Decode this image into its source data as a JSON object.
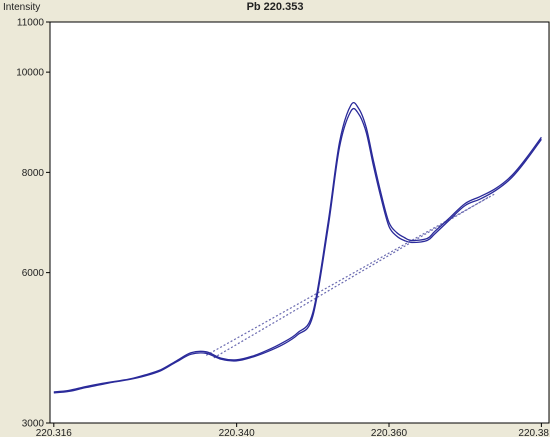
{
  "chart_data": {
    "type": "line",
    "title": "Pb 220.353",
    "ylabel": "Intensity",
    "xlabel": "",
    "xlim": [
      220.3155,
      220.381
    ],
    "ylim": [
      3000,
      11000
    ],
    "y_ticks": [
      {
        "value": 3000,
        "label": "3000"
      },
      {
        "value": 6000,
        "label": "6000"
      },
      {
        "value": 8000,
        "label": "8000"
      },
      {
        "value": 10000,
        "label": "10000"
      },
      {
        "value": 11000,
        "label": "11000"
      }
    ],
    "x_ticks": [
      {
        "value": 220.316,
        "label": "220.316"
      },
      {
        "value": 220.34,
        "label": "220.340"
      },
      {
        "value": 220.36,
        "label": "220.360"
      },
      {
        "value": 220.38,
        "label": "220.38"
      }
    ],
    "grid": false,
    "legend": "none",
    "colors": {
      "series": "#2a2a9a",
      "baseline": "#6a6ab0",
      "axis": "#000000",
      "plot_background": "#ffffff",
      "frame_background": "#ece9d8"
    },
    "series": [
      {
        "style": "solid",
        "x": [
          220.316,
          220.318,
          220.32,
          220.322,
          220.324,
          220.326,
          220.328,
          220.33,
          220.332,
          220.334,
          220.336,
          220.338,
          220.34,
          220.342,
          220.344,
          220.346,
          220.348,
          220.35,
          220.352,
          220.3535,
          220.355,
          220.356,
          220.357,
          220.358,
          220.359,
          220.36,
          220.361,
          220.362,
          220.363,
          220.365,
          220.366,
          220.368,
          220.37,
          220.372,
          220.374,
          220.376,
          220.378,
          220.38
        ],
        "y": [
          3620,
          3650,
          3720,
          3780,
          3830,
          3880,
          3960,
          4060,
          4230,
          4400,
          4420,
          4290,
          4260,
          4330,
          4450,
          4600,
          4800,
          5200,
          7000,
          8600,
          9340,
          9280,
          8900,
          8200,
          7550,
          7000,
          6800,
          6700,
          6640,
          6680,
          6820,
          7100,
          7380,
          7520,
          7680,
          7920,
          8280,
          8700
        ]
      },
      {
        "style": "solid",
        "x": [
          220.316,
          220.318,
          220.32,
          220.322,
          220.324,
          220.326,
          220.328,
          220.33,
          220.332,
          220.334,
          220.336,
          220.338,
          220.34,
          220.342,
          220.344,
          220.346,
          220.348,
          220.35,
          220.352,
          220.3535,
          220.355,
          220.356,
          220.357,
          220.358,
          220.359,
          220.36,
          220.361,
          220.362,
          220.363,
          220.365,
          220.366,
          220.368,
          220.37,
          220.372,
          220.374,
          220.376,
          220.378,
          220.38
        ],
        "y": [
          3600,
          3630,
          3700,
          3760,
          3820,
          3870,
          3940,
          4040,
          4210,
          4370,
          4390,
          4270,
          4240,
          4310,
          4420,
          4560,
          4760,
          5130,
          6900,
          8500,
          9220,
          9170,
          8800,
          8100,
          7460,
          6920,
          6730,
          6640,
          6600,
          6640,
          6770,
          7060,
          7340,
          7470,
          7640,
          7880,
          8240,
          8660
        ]
      }
    ],
    "baselines": [
      {
        "style": "dashed",
        "x": [
          220.336,
          220.374
        ],
        "y": [
          4350,
          7580
        ]
      },
      {
        "style": "dashed",
        "x": [
          220.337,
          220.373
        ],
        "y": [
          4300,
          7500
        ]
      }
    ]
  }
}
